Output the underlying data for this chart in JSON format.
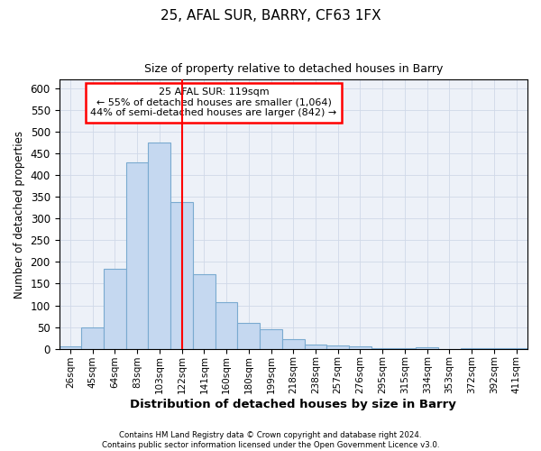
{
  "title1": "25, AFAL SUR, BARRY, CF63 1FX",
  "title2": "Size of property relative to detached houses in Barry",
  "xlabel": "Distribution of detached houses by size in Barry",
  "ylabel": "Number of detached properties",
  "categories": [
    "26sqm",
    "45sqm",
    "64sqm",
    "83sqm",
    "103sqm",
    "122sqm",
    "141sqm",
    "160sqm",
    "180sqm",
    "199sqm",
    "218sqm",
    "238sqm",
    "257sqm",
    "276sqm",
    "295sqm",
    "315sqm",
    "334sqm",
    "353sqm",
    "372sqm",
    "392sqm",
    "411sqm"
  ],
  "values": [
    5,
    50,
    185,
    430,
    475,
    338,
    172,
    107,
    60,
    45,
    22,
    10,
    8,
    5,
    2,
    1,
    3,
    0,
    2,
    1,
    1
  ],
  "bar_color": "#c5d8f0",
  "bar_edge_color": "#7aaad0",
  "vline_x": 5,
  "vline_color": "red",
  "annotation_title": "25 AFAL SUR: 119sqm",
  "annotation_line1": "← 55% of detached houses are smaller (1,064)",
  "annotation_line2": "44% of semi-detached houses are larger (842) →",
  "annotation_box_color": "white",
  "annotation_box_edge": "red",
  "ylim": [
    0,
    620
  ],
  "yticks": [
    0,
    50,
    100,
    150,
    200,
    250,
    300,
    350,
    400,
    450,
    500,
    550,
    600
  ],
  "grid_color": "#d0d8e8",
  "footer1": "Contains HM Land Registry data © Crown copyright and database right 2024.",
  "footer2": "Contains public sector information licensed under the Open Government Licence v3.0.",
  "bg_color": "#edf1f8"
}
